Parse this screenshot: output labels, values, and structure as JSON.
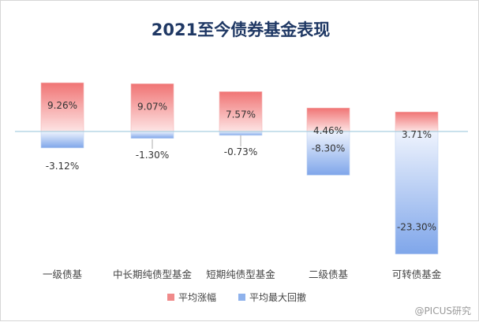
{
  "chart_data": {
    "type": "bar",
    "title": "2021至今债券基金表现",
    "categories": [
      "一级债基",
      "中长期纯债型基金",
      "短期纯债型基金",
      "二级债基",
      "可转债基金"
    ],
    "series": [
      {
        "name": "平均涨幅",
        "values": [
          9.26,
          9.07,
          7.57,
          4.46,
          3.71
        ],
        "labels": [
          "9.26%",
          "9.07%",
          "7.57%",
          "4.46%",
          "3.71%"
        ],
        "color": "#f08a8a"
      },
      {
        "name": "平均最大回撤",
        "values": [
          -3.12,
          -1.3,
          -0.73,
          -8.3,
          -23.3
        ],
        "labels": [
          "-3.12%",
          "-1.30%",
          "-0.73%",
          "-8.30%",
          "-23.30%"
        ],
        "color": "#8fb2ec"
      }
    ],
    "ylim": [
      -23.3,
      9.3
    ],
    "grid": false,
    "legend_position": "bottom-center"
  },
  "watermark": "@PICUS研究"
}
